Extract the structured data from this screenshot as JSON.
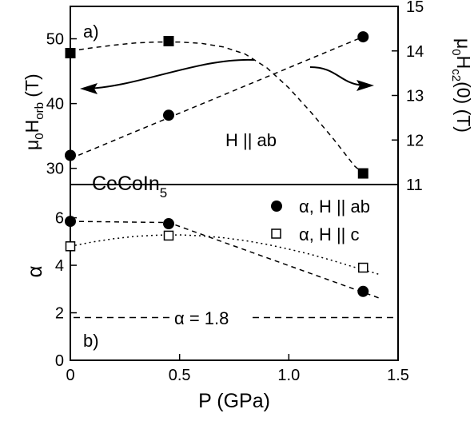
{
  "chart_data": [
    {
      "panel_label": "a)",
      "type": "scatter",
      "xlim": [
        0,
        1.5
      ],
      "ylim_left": [
        27.5,
        55
      ],
      "ylim_right": [
        11,
        15
      ],
      "left_ticks": [
        30,
        40,
        50
      ],
      "right_ticks": [
        11,
        12,
        13,
        14,
        15
      ],
      "ylabel_left": {
        "main": "μ",
        "sub1": "0",
        "mid": "H",
        "sub2": "orb",
        "tail": " (T)"
      },
      "ylabel_right": {
        "main": "μ",
        "sub1": "0",
        "mid": "H",
        "sub2": "c2",
        "tail": "(0) (T)"
      },
      "annotations": {
        "field": "H || ab",
        "compound": "CeCoIn",
        "compound_sub": "5"
      },
      "series": [
        {
          "axis": "left",
          "marker": "filled-circle",
          "x": [
            0,
            0.45,
            1.34
          ],
          "y": [
            32.0,
            38.2,
            50.3
          ]
        },
        {
          "axis": "right",
          "marker": "filled-square",
          "x": [
            0,
            0.45,
            1.34
          ],
          "y": [
            13.95,
            14.22,
            11.25
          ]
        }
      ],
      "fits": [
        {
          "axis": "left",
          "style": "dashed",
          "x": [
            0,
            1.34
          ],
          "y": [
            31.5,
            50.3
          ]
        },
        {
          "axis": "right",
          "style": "dashed",
          "x": [
            0,
            0.1,
            0.2,
            0.3,
            0.4,
            0.5,
            0.6,
            0.7,
            0.8,
            0.9,
            1.0,
            1.1,
            1.2,
            1.3,
            1.34
          ],
          "y": [
            14.0,
            14.07,
            14.13,
            14.18,
            14.2,
            14.2,
            14.17,
            14.09,
            13.93,
            13.62,
            13.17,
            12.63,
            12.05,
            11.42,
            11.25
          ]
        }
      ]
    },
    {
      "panel_label": "b)",
      "type": "scatter",
      "xlabel": "P (GPa)",
      "ylabel": "α",
      "xlim": [
        0,
        1.5
      ],
      "ylim": [
        0,
        7.4
      ],
      "xticks": [
        "0",
        "0.5",
        "1.0",
        "1.5"
      ],
      "yticks": [
        0,
        2,
        4,
        6
      ],
      "hline": {
        "y": 1.8,
        "label": "α = 1.8",
        "style": "dashed"
      },
      "series": [
        {
          "name": "α, H || ab",
          "marker": "filled-circle",
          "x": [
            0,
            0.45,
            1.34
          ],
          "y": [
            5.85,
            5.75,
            2.9
          ]
        },
        {
          "name": "α, H || c",
          "marker": "open-square",
          "x": [
            0,
            0.45,
            1.34
          ],
          "y": [
            4.8,
            5.25,
            3.9
          ]
        }
      ],
      "fits": [
        {
          "style": "dashed",
          "x": [
            0,
            0.45,
            1.42
          ],
          "y": [
            5.85,
            5.8,
            2.6
          ]
        },
        {
          "style": "dotted",
          "x": [
            0,
            0.1,
            0.2,
            0.3,
            0.4,
            0.5,
            0.6,
            0.7,
            0.8,
            0.9,
            1.0,
            1.1,
            1.2,
            1.3,
            1.42
          ],
          "y": [
            4.8,
            4.98,
            5.12,
            5.22,
            5.27,
            5.28,
            5.24,
            5.16,
            5.04,
            4.88,
            4.68,
            4.46,
            4.2,
            3.92,
            3.6
          ]
        }
      ],
      "legend_position": "top-right"
    }
  ]
}
